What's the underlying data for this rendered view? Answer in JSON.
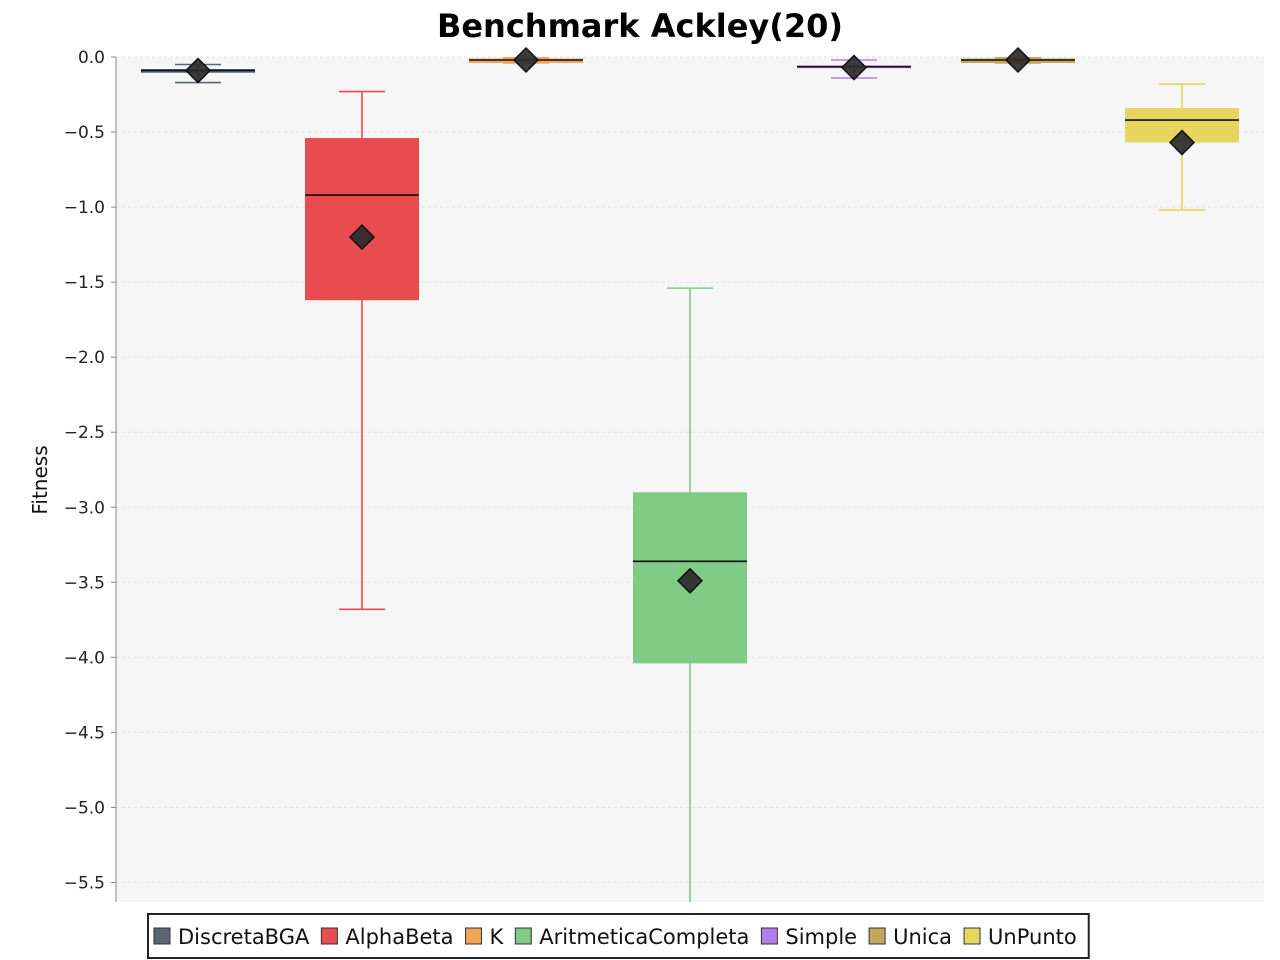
{
  "chart_data": {
    "type": "boxplot",
    "title": "Benchmark Ackley(20)",
    "xlabel": "",
    "ylabel": "Fitness",
    "ylim": [
      -5.63,
      0.0
    ],
    "yticks": [
      0.0,
      -0.5,
      -1.0,
      -1.5,
      -2.0,
      -2.5,
      -3.0,
      -3.5,
      -4.0,
      -4.5,
      -5.0,
      -5.5
    ],
    "ytick_labels": [
      "0.0",
      "−0.5",
      "−1.0",
      "−1.5",
      "−2.0",
      "−2.5",
      "−3.0",
      "−3.5",
      "−4.0",
      "−4.5",
      "−5.0",
      "−5.5"
    ],
    "grid": true,
    "legend_position": "bottom",
    "series": [
      {
        "name": "DiscretaBGA",
        "color": "#5a6673",
        "whisker_low": -0.17,
        "q1": -0.105,
        "median": -0.09,
        "q3": -0.08,
        "whisker_high": -0.05,
        "mean": -0.09
      },
      {
        "name": "AlphaBeta",
        "color": "#e84c4e",
        "whisker_low": -3.68,
        "q1": -1.62,
        "median": -0.92,
        "q3": -0.54,
        "whisker_high": -0.23,
        "mean": -1.2
      },
      {
        "name": "K",
        "color": "#f2a55a",
        "whisker_low": -0.04,
        "q1": -0.04,
        "median": -0.02,
        "q3": -0.01,
        "whisker_high": -0.005,
        "mean": -0.02
      },
      {
        "name": "AritmeticaCompleta",
        "color": "#7fca85",
        "whisker_low": -5.63,
        "q1": -4.04,
        "median": -3.36,
        "q3": -2.9,
        "whisker_high": -1.54,
        "mean": -3.49
      },
      {
        "name": "Simple",
        "color": "#b080e8",
        "whisker_low": -0.14,
        "q1": -0.075,
        "median": -0.065,
        "q3": -0.055,
        "whisker_high": -0.02,
        "mean": -0.07
      },
      {
        "name": "Unica",
        "color": "#c4a660",
        "whisker_low": -0.04,
        "q1": -0.04,
        "median": -0.02,
        "q3": -0.01,
        "whisker_high": -0.005,
        "mean": -0.02
      },
      {
        "name": "UnPunto",
        "color": "#e6d65f",
        "whisker_low": -1.02,
        "q1": -0.57,
        "median": -0.42,
        "q3": -0.34,
        "whisker_high": -0.18,
        "mean": -0.57
      }
    ]
  }
}
